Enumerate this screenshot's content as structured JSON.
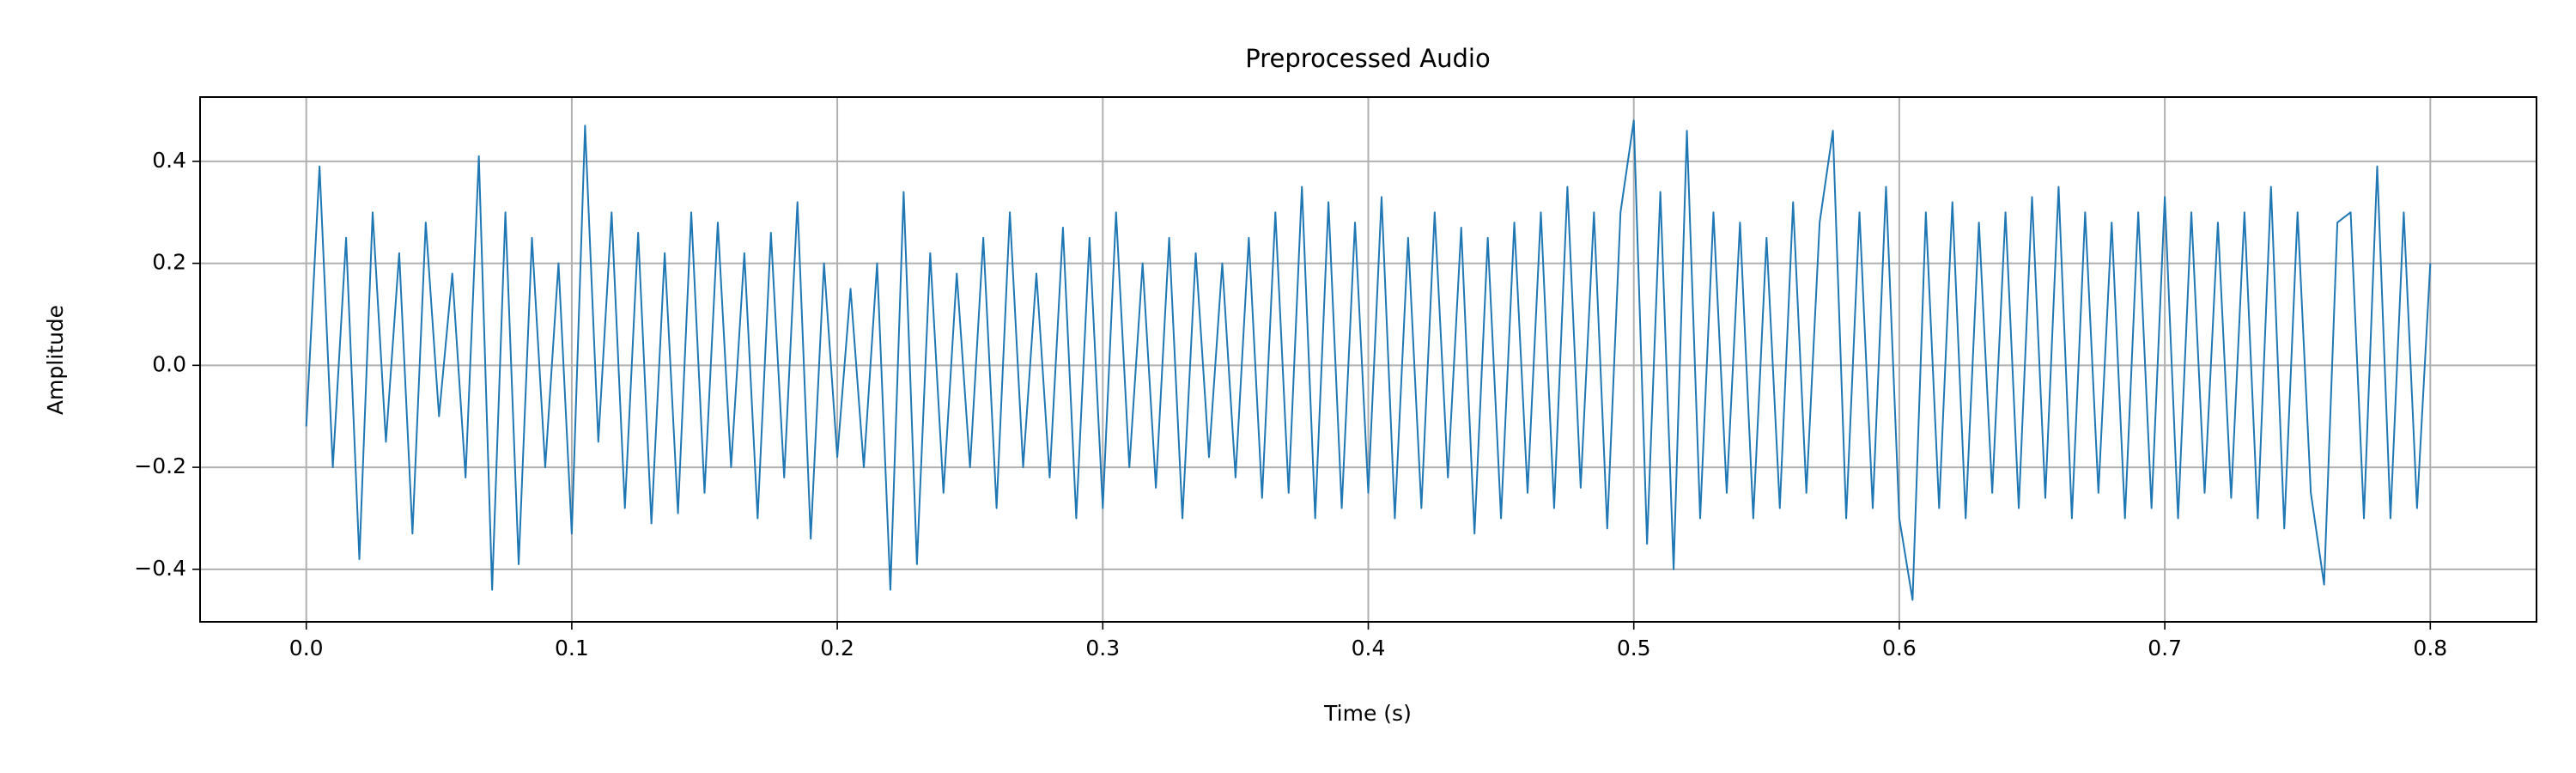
{
  "chart_data": {
    "type": "line",
    "title": "Preprocessed Audio",
    "xlabel": "Time (s)",
    "ylabel": "Amplitude",
    "color": "#1f77b4",
    "grid": true,
    "xlim": [
      -0.04,
      0.84
    ],
    "ylim": [
      -0.503,
      0.526
    ],
    "xticks": [
      {
        "value": 0,
        "label": "0.0"
      },
      0.1,
      0.2,
      0.3,
      0.4,
      0.5,
      0.6,
      0.7,
      0.8
    ],
    "yticks": [
      {
        "value": -0.4,
        "label": "−0.4"
      },
      {
        "value": -0.2,
        "label": "−0.2"
      },
      {
        "value": 0,
        "label": "0.0"
      },
      0.2,
      0.4
    ],
    "x": [
      0,
      0.005,
      0.01,
      0.015,
      0.02,
      0.025,
      0.03,
      0.035,
      0.04,
      0.045,
      0.05,
      0.055,
      0.06,
      0.065,
      0.07,
      0.075,
      0.08,
      0.085,
      0.09,
      0.095,
      0.1,
      0.105,
      0.11,
      0.115,
      0.12,
      0.125,
      0.13,
      0.135,
      0.14,
      0.145,
      0.15,
      0.155,
      0.16,
      0.165,
      0.17,
      0.175,
      0.18,
      0.185,
      0.19,
      0.195,
      0.2,
      0.205,
      0.21,
      0.215,
      0.22,
      0.225,
      0.23,
      0.235,
      0.24,
      0.245,
      0.25,
      0.255,
      0.26,
      0.265,
      0.27,
      0.275,
      0.28,
      0.285,
      0.29,
      0.295,
      0.3,
      0.305,
      0.31,
      0.315,
      0.32,
      0.325,
      0.33,
      0.335,
      0.34,
      0.345,
      0.35,
      0.355,
      0.36,
      0.365,
      0.37,
      0.375,
      0.38,
      0.385,
      0.39,
      0.395,
      0.4,
      0.405,
      0.41,
      0.415,
      0.42,
      0.425,
      0.43,
      0.435,
      0.44,
      0.445,
      0.45,
      0.455,
      0.46,
      0.465,
      0.47,
      0.475,
      0.48,
      0.485,
      0.49,
      0.495,
      0.5,
      0.505,
      0.51,
      0.515,
      0.52,
      0.525,
      0.53,
      0.535,
      0.54,
      0.545,
      0.55,
      0.555,
      0.56,
      0.565,
      0.57,
      0.575,
      0.58,
      0.585,
      0.59,
      0.595,
      0.6,
      0.605,
      0.61,
      0.615,
      0.62,
      0.625,
      0.63,
      0.635,
      0.64,
      0.645,
      0.65,
      0.655,
      0.66,
      0.665,
      0.67,
      0.675,
      0.68,
      0.685,
      0.69,
      0.695,
      0.7,
      0.705,
      0.71,
      0.715,
      0.72,
      0.725,
      0.73,
      0.735,
      0.74,
      0.745,
      0.75,
      0.755,
      0.76,
      0.765,
      0.77,
      0.775,
      0.78,
      0.785,
      0.79,
      0.795,
      0.8
    ],
    "values": [
      -0.12,
      0.39,
      -0.2,
      0.25,
      -0.38,
      0.3,
      -0.15,
      0.22,
      -0.33,
      0.28,
      -0.1,
      0.18,
      -0.22,
      0.41,
      -0.44,
      0.3,
      -0.39,
      0.25,
      -0.2,
      0.2,
      -0.33,
      0.47,
      -0.15,
      0.3,
      -0.28,
      0.26,
      -0.31,
      0.22,
      -0.29,
      0.3,
      -0.25,
      0.28,
      -0.2,
      0.22,
      -0.3,
      0.26,
      -0.22,
      0.32,
      -0.34,
      0.2,
      -0.18,
      0.15,
      -0.2,
      0.2,
      -0.44,
      0.34,
      -0.39,
      0.22,
      -0.25,
      0.18,
      -0.2,
      0.25,
      -0.28,
      0.3,
      -0.2,
      0.18,
      -0.22,
      0.27,
      -0.3,
      0.25,
      -0.28,
      0.3,
      -0.2,
      0.2,
      -0.24,
      0.25,
      -0.3,
      0.22,
      -0.18,
      0.2,
      -0.22,
      0.25,
      -0.26,
      0.3,
      -0.25,
      0.35,
      -0.3,
      0.32,
      -0.28,
      0.28,
      -0.25,
      0.33,
      -0.3,
      0.25,
      -0.28,
      0.3,
      -0.22,
      0.27,
      -0.33,
      0.25,
      -0.3,
      0.28,
      -0.25,
      0.3,
      -0.28,
      0.35,
      -0.24,
      0.3,
      -0.32,
      0.3,
      0.48,
      -0.35,
      0.34,
      -0.4,
      0.46,
      -0.3,
      0.3,
      -0.25,
      0.28,
      -0.3,
      0.25,
      -0.28,
      0.32,
      -0.25,
      0.28,
      0.46,
      -0.3,
      0.3,
      -0.28,
      0.35,
      -0.3,
      -0.46,
      0.3,
      -0.28,
      0.32,
      -0.3,
      0.28,
      -0.25,
      0.3,
      -0.28,
      0.33,
      -0.26,
      0.35,
      -0.3,
      0.3,
      -0.25,
      0.28,
      -0.3,
      0.3,
      -0.28,
      0.33,
      -0.3,
      0.3,
      -0.25,
      0.28,
      -0.26,
      0.3,
      -0.3,
      0.35,
      -0.32,
      0.3,
      -0.25,
      -0.43,
      0.28,
      0.3,
      -0.3,
      0.39,
      -0.3,
      0.3,
      -0.28,
      0.2
    ]
  }
}
